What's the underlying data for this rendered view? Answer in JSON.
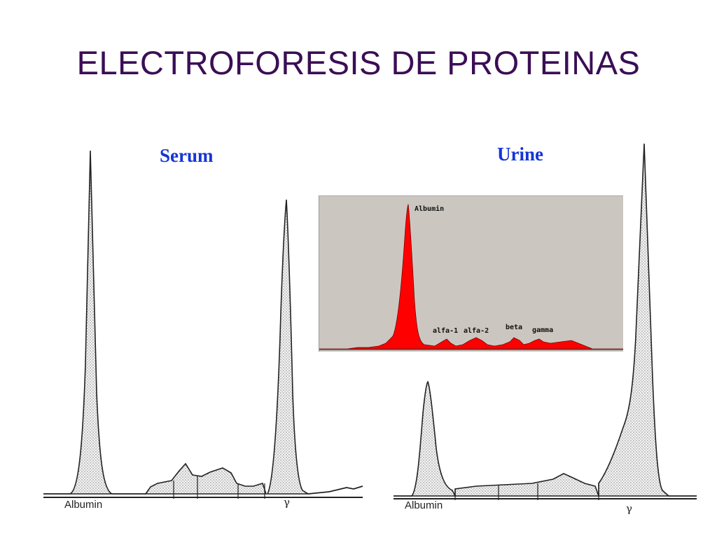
{
  "slide": {
    "title": "ELECTROFORESIS DE PROTEINAS"
  },
  "serum": {
    "title": "Serum",
    "albumin_label": "Albumin",
    "gamma_label": "γ"
  },
  "urine": {
    "title": "Urine",
    "albumin_label": "Albumin",
    "gamma_label": "γ"
  },
  "inset": {
    "labels": {
      "albumin": "Albumin",
      "alfa1": "alfa-1",
      "alfa2": "alfa-2",
      "beta": "beta",
      "gamma": "gamma"
    },
    "colors": {
      "background": "#cbc7c0",
      "fill": "#ff0000"
    }
  },
  "colors": {
    "title": "#3b0e55",
    "panel_label": "#1535d6",
    "trace": "#222222"
  }
}
